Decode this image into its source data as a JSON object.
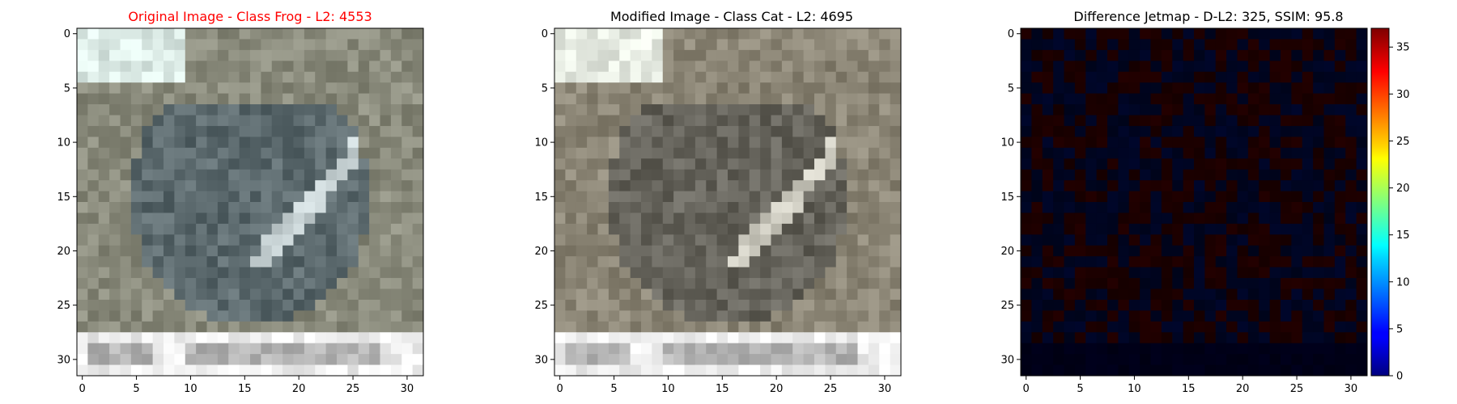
{
  "chart_data": [
    {
      "type": "heatmap",
      "title": "Original Image - Class Frog - L2: 4553",
      "title_color": "#ff0000",
      "xlim": [
        -0.5,
        31.5
      ],
      "ylim": [
        31.5,
        -0.5
      ],
      "xticks": [
        0,
        5,
        10,
        15,
        20,
        25,
        30
      ],
      "yticks": [
        0,
        5,
        10,
        15,
        20,
        25,
        30
      ],
      "grid": false,
      "image_size": [
        32,
        32
      ],
      "palette": {
        "sky": "#dcebe6",
        "ground": "#8a8b7c",
        "object": "#5c6a6e",
        "highlight": "#c9d4d6",
        "base": "#f1f1f1",
        "base_shadow": "#b4b4b4"
      }
    },
    {
      "type": "heatmap",
      "title": "Modified Image - Class Cat - L2: 4695",
      "title_color": "#000000",
      "xlim": [
        -0.5,
        31.5
      ],
      "ylim": [
        31.5,
        -0.5
      ],
      "xticks": [
        0,
        5,
        10,
        15,
        20,
        25,
        30
      ],
      "yticks": [
        0,
        5,
        10,
        15,
        20,
        25,
        30
      ],
      "grid": false,
      "image_size": [
        32,
        32
      ],
      "palette": {
        "sky": "#e6ebe2",
        "ground": "#8c8676",
        "object": "#66645c",
        "highlight": "#cfcdc2",
        "base": "#f1f1f1",
        "base_shadow": "#b4b4b4"
      }
    },
    {
      "type": "heatmap",
      "title": "Difference Jetmap - D-L2: 325, SSIM: 95.8",
      "title_color": "#000000",
      "xlim": [
        -0.5,
        31.5
      ],
      "ylim": [
        31.5,
        -0.5
      ],
      "xticks": [
        0,
        5,
        10,
        15,
        20,
        25,
        30
      ],
      "yticks": [
        0,
        5,
        10,
        15,
        20,
        25,
        30
      ],
      "grid": false,
      "image_size": [
        32,
        32
      ],
      "colormap": "jet",
      "colorbar": {
        "range": [
          0,
          37
        ],
        "ticks": [
          0,
          5,
          10,
          15,
          20,
          25,
          30,
          35
        ]
      }
    }
  ]
}
